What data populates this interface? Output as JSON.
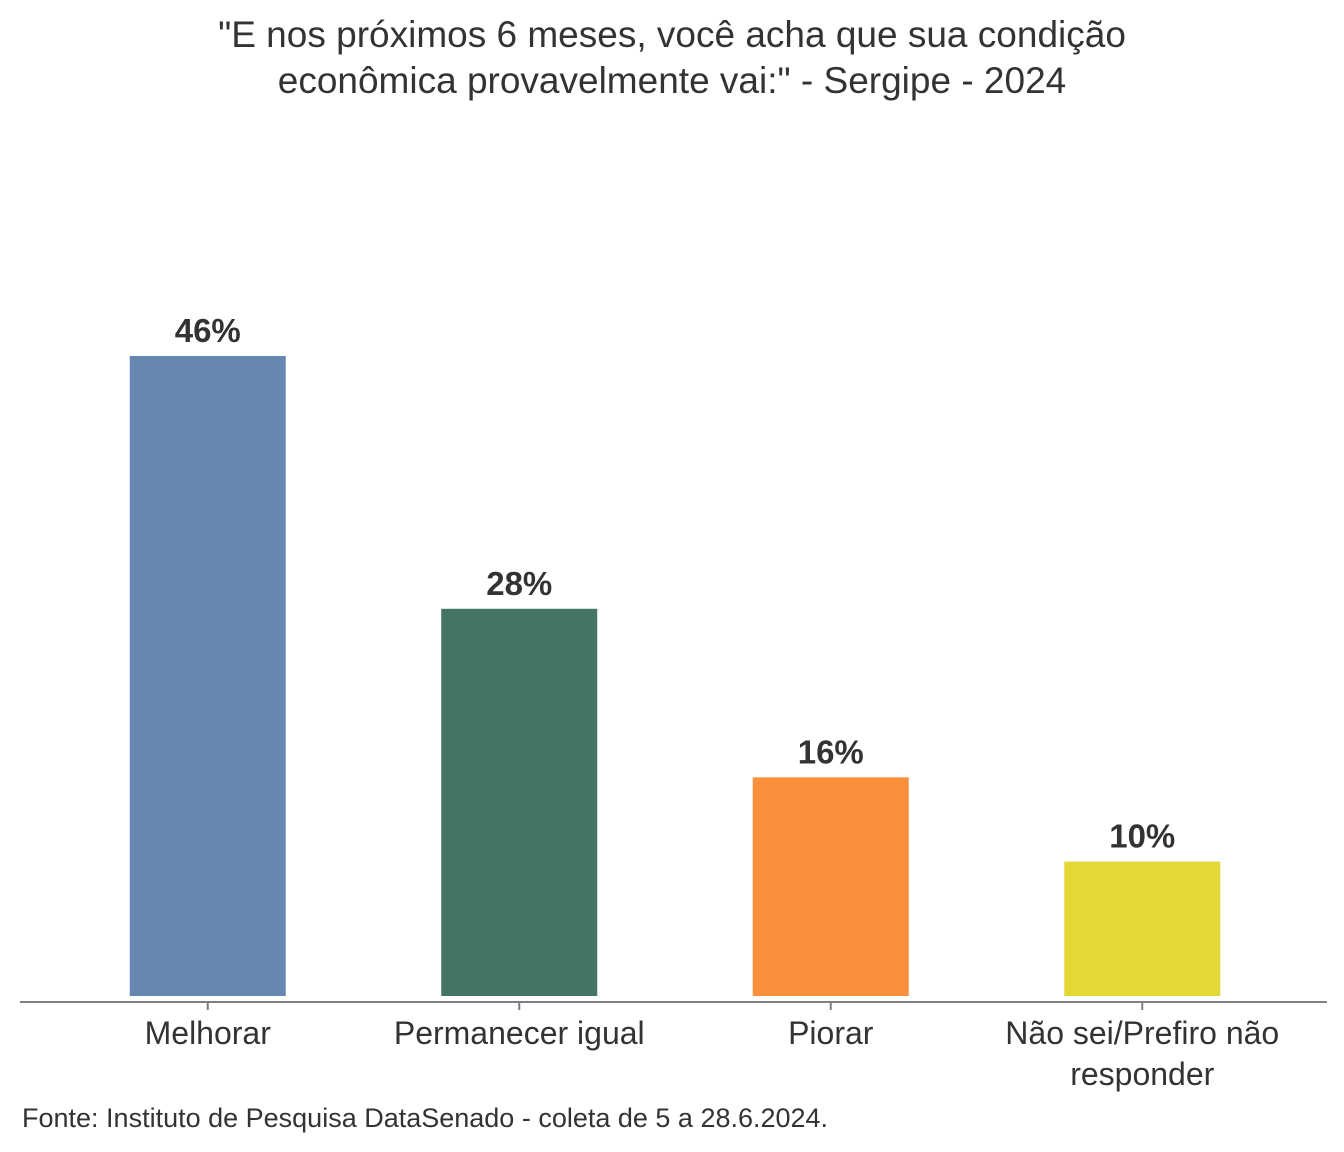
{
  "chart_data": {
    "type": "bar",
    "title": [
      "\"E nos próximos 6 meses, você acha que sua condição",
      "econômica provavelmente vai:\" - Sergipe - 2024"
    ],
    "categories": [
      [
        "Melhorar"
      ],
      [
        "Permanecer igual"
      ],
      [
        "Piorar"
      ],
      [
        "Não sei/Prefiro não",
        "responder"
      ]
    ],
    "values": [
      46,
      28,
      16,
      10
    ],
    "value_labels": [
      "46%",
      "28%",
      "16%",
      "10%"
    ],
    "colors": [
      "#6688b0",
      "#447462",
      "#fa903c",
      "#e3d836"
    ],
    "xlabel": "",
    "ylabel": "",
    "ylim": [
      0,
      46
    ],
    "grid": false,
    "source": "Fonte: Instituto de Pesquisa DataSenado - coleta de 5 a 28.6.2024."
  }
}
